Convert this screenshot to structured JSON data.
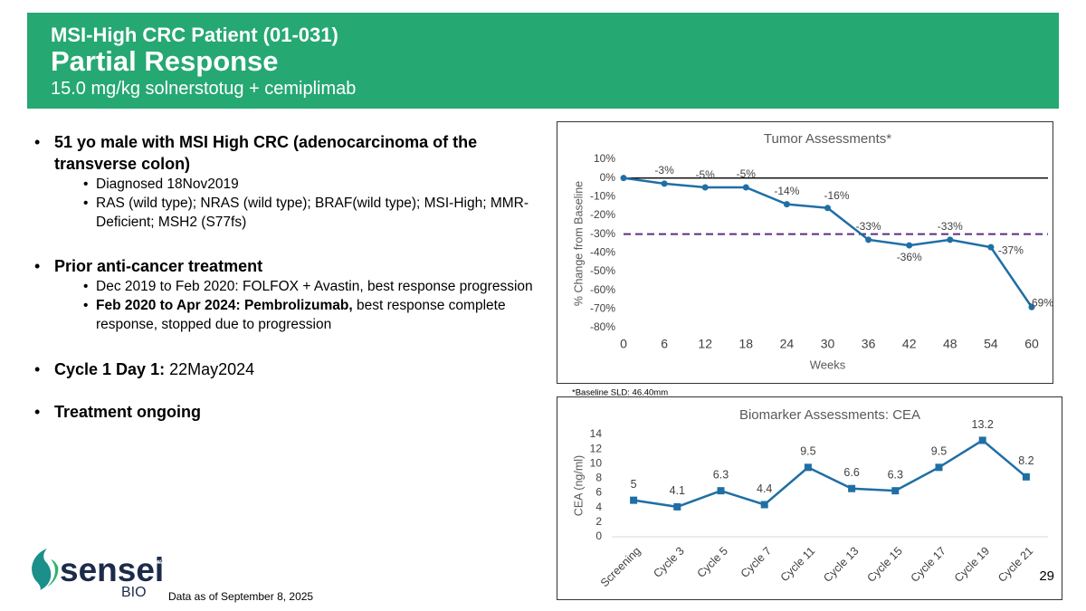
{
  "header": {
    "eyebrow": "MSI-High CRC Patient (01-031)",
    "title": "Partial Response",
    "subtitle": "15.0 mg/kg solnerstotug + cemiplimab"
  },
  "bullets": [
    {
      "text": "51 yo male with MSI High CRC (adenocarcinoma of the transverse colon)",
      "items": [
        "Diagnosed 18Nov2019",
        "RAS (wild type); NRAS (wild type); BRAF(wild type); MSI-High; MMR-Deficient; MSH2 (S77fs)"
      ]
    },
    {
      "text": "Prior anti-cancer treatment",
      "items": [
        "Dec 2019 to Feb 2020: FOLFOX + Avastin, best response progression"
      ],
      "bold_item": {
        "lead": "Feb 2020 to Apr 2024: Pembrolizumab,",
        "rest": "best response complete response, stopped due to progression"
      }
    },
    {
      "text": "Cycle 1 Day 1:",
      "rest": "22May2024"
    },
    {
      "text": "Treatment ongoing"
    }
  ],
  "footnote": "*Baseline SLD: 46.40mm",
  "date_note": "Data as of September 8, 2025",
  "page_number": 29,
  "logo": {
    "name": "sensei",
    "suffix": "BIO",
    "mark": "™"
  },
  "chart_data": [
    {
      "type": "line",
      "title": "Tumor Assessments*",
      "x_label": "Weeks",
      "y_label": "% Change from Baseline",
      "x": [
        0,
        6,
        12,
        18,
        24,
        30,
        36,
        42,
        48,
        54,
        60
      ],
      "values": [
        0,
        -3,
        -5,
        -5,
        -14,
        -16,
        -33,
        -36,
        -33,
        -37,
        -69
      ],
      "value_labels": [
        null,
        "-3%",
        "-5%",
        "-5%",
        "-14%",
        "-16%",
        "-33%",
        "-36%",
        "-33%",
        "-37%",
        "-69%"
      ],
      "color": "#1f6fa5",
      "marker": "circle",
      "xlim": [
        0,
        60
      ],
      "xticks": [
        0,
        6,
        12,
        18,
        24,
        30,
        36,
        42,
        48,
        54,
        60
      ],
      "ylim": [
        -80,
        10
      ],
      "yticks": [
        {
          "value": -80,
          "label": "-80%"
        },
        {
          "value": -70,
          "label": "-70%"
        },
        {
          "value": -60,
          "label": "-60%"
        },
        {
          "value": -50,
          "label": "-50%"
        },
        {
          "value": -40,
          "label": "-40%"
        },
        {
          "value": -30,
          "label": "-30%"
        },
        {
          "value": -20,
          "label": "-20%"
        },
        {
          "value": -10,
          "label": "-10%"
        },
        {
          "value": 0,
          "label": "0%"
        },
        {
          "value": 10,
          "label": "10%"
        }
      ],
      "reference_line": {
        "value": -30,
        "color": "#5b2c83",
        "dashed": true
      },
      "grid": false
    },
    {
      "type": "line",
      "title": "Biomarker Assessments: CEA",
      "y_label": "CEA (ng/ml)",
      "categories": [
        "Screening",
        "Cycle 3",
        "Cycle 5",
        "Cycle 7",
        "Cycle 11",
        "Cycle 13",
        "Cycle 15",
        "Cycle 17",
        "Cycle 19",
        "Cycle 21"
      ],
      "values": [
        5,
        4.1,
        6.3,
        4.4,
        9.5,
        6.6,
        6.3,
        9.5,
        13.2,
        8.2
      ],
      "color": "#1f6fa5",
      "marker": "square",
      "ylim": [
        0,
        14
      ],
      "yticks": [
        0,
        2,
        4,
        6,
        8,
        10,
        12,
        14
      ],
      "grid": false
    }
  ]
}
